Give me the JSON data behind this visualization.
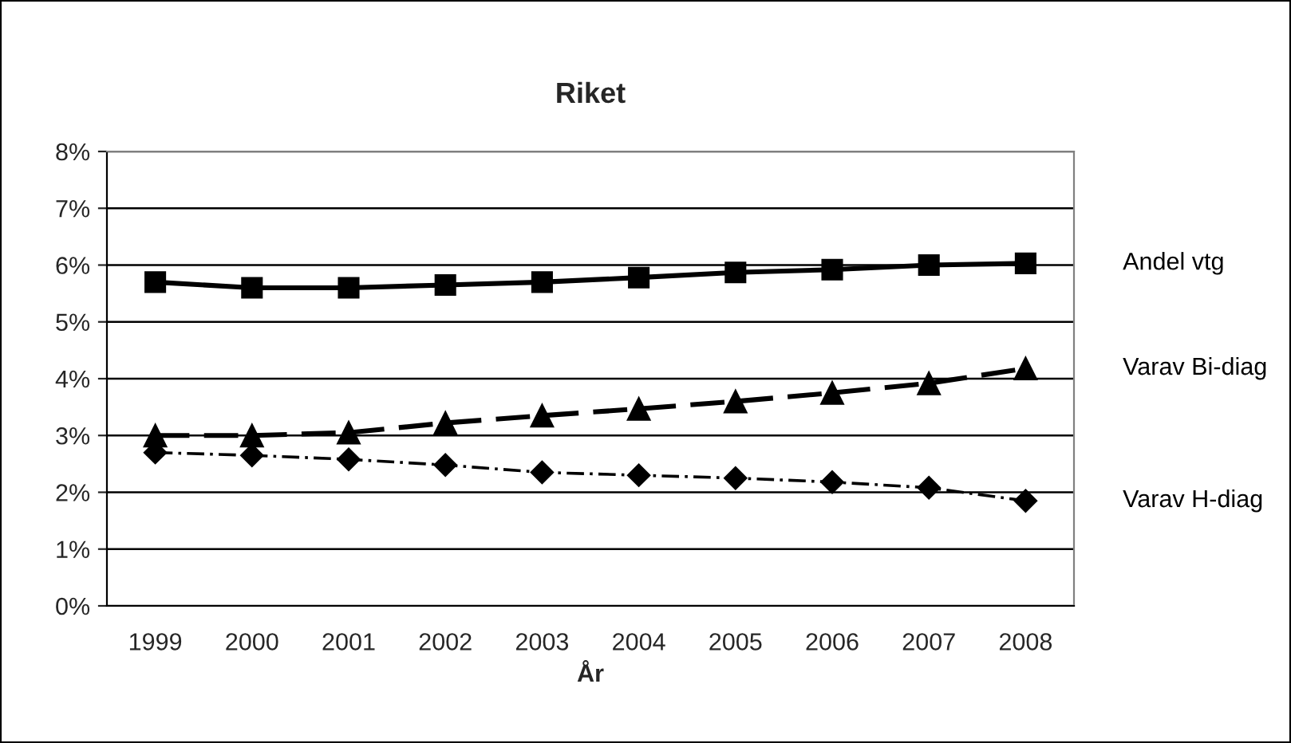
{
  "chart_data": {
    "type": "line",
    "title": "Riket",
    "xlabel": "År",
    "categories": [
      "1999",
      "2000",
      "2001",
      "2002",
      "2003",
      "2004",
      "2005",
      "2006",
      "2007",
      "2008"
    ],
    "series": [
      {
        "name": "Andel vtg",
        "color": "#000000",
        "marker": "square",
        "line_style": "solid",
        "values": [
          5.7,
          5.6,
          5.6,
          5.65,
          5.7,
          5.78,
          5.87,
          5.92,
          6.0,
          6.03
        ]
      },
      {
        "name": "Varav Bi-diag",
        "color": "#000000",
        "marker": "triangle",
        "line_style": "dashed",
        "values": [
          3.0,
          3.0,
          3.05,
          3.22,
          3.35,
          3.47,
          3.6,
          3.75,
          3.92,
          4.18
        ]
      },
      {
        "name": "Varav H-diag",
        "color": "#000000",
        "marker": "diamond",
        "line_style": "dotted",
        "values": [
          2.7,
          2.65,
          2.58,
          2.48,
          2.35,
          2.3,
          2.25,
          2.18,
          2.08,
          1.85
        ]
      }
    ],
    "ylim": [
      0,
      8
    ],
    "yticks": [
      {
        "value": 0,
        "label": "0%"
      },
      {
        "value": 1,
        "label": "1%"
      },
      {
        "value": 2,
        "label": "2%"
      },
      {
        "value": 3,
        "label": "3%"
      },
      {
        "value": 4,
        "label": "4%"
      },
      {
        "value": 5,
        "label": "5%"
      },
      {
        "value": 6,
        "label": "6%"
      },
      {
        "value": 7,
        "label": "7%"
      },
      {
        "value": 8,
        "label": "8%"
      }
    ],
    "grid": "y",
    "legend": "right"
  }
}
